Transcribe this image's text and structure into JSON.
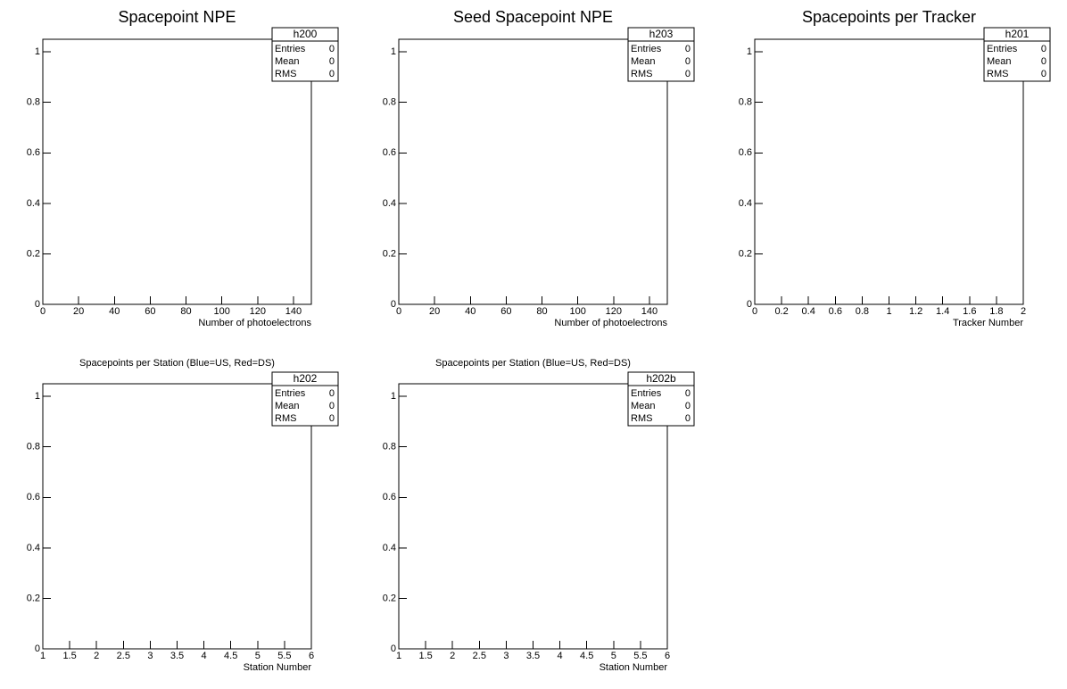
{
  "chart_data": [
    {
      "type": "hist",
      "title": "Spacepoint NPE",
      "xlabel": "Number of photoelectrons",
      "xlim": [
        0,
        150
      ],
      "xticks": [
        0,
        20,
        40,
        60,
        80,
        100,
        120,
        140
      ],
      "ylim": [
        0,
        1.05
      ],
      "yticks": [
        0,
        0.2,
        0.4,
        0.6,
        0.8,
        1
      ],
      "stats": {
        "name": "h200",
        "labels": [
          "Entries",
          "Mean",
          "RMS"
        ],
        "values": [
          0,
          0,
          0
        ]
      }
    },
    {
      "type": "hist",
      "title": "Seed Spacepoint NPE",
      "xlabel": "Number of photoelectrons",
      "xlim": [
        0,
        150
      ],
      "xticks": [
        0,
        20,
        40,
        60,
        80,
        100,
        120,
        140
      ],
      "ylim": [
        0,
        1.05
      ],
      "yticks": [
        0,
        0.2,
        0.4,
        0.6,
        0.8,
        1
      ],
      "stats": {
        "name": "h203",
        "labels": [
          "Entries",
          "Mean",
          "RMS"
        ],
        "values": [
          0,
          0,
          0
        ]
      }
    },
    {
      "type": "hist",
      "title": "Spacepoints per Tracker",
      "xlabel": "Tracker Number",
      "xlim": [
        0,
        2
      ],
      "xticks": [
        0,
        0.2,
        0.4,
        0.6,
        0.8,
        1,
        1.2,
        1.4,
        1.6,
        1.8,
        2
      ],
      "ylim": [
        0,
        1.05
      ],
      "yticks": [
        0,
        0.2,
        0.4,
        0.6,
        0.8,
        1
      ],
      "stats": {
        "name": "h201",
        "labels": [
          "Entries",
          "Mean",
          "RMS"
        ],
        "values": [
          0,
          0,
          0
        ]
      }
    },
    {
      "type": "hist",
      "title": "Spacepoints per Station (Blue=US, Red=DS)",
      "xlabel": "Station Number",
      "xlim": [
        1,
        6
      ],
      "xticks": [
        1,
        1.5,
        2,
        2.5,
        3,
        3.5,
        4,
        4.5,
        5,
        5.5,
        6
      ],
      "ylim": [
        0,
        1.05
      ],
      "yticks": [
        0,
        0.2,
        0.4,
        0.6,
        0.8,
        1
      ],
      "stats": {
        "name": "h202",
        "labels": [
          "Entries",
          "Mean",
          "RMS"
        ],
        "values": [
          0,
          0,
          0
        ]
      }
    },
    {
      "type": "hist",
      "title": "Spacepoints per Station (Blue=US, Red=DS)",
      "xlabel": "Station Number",
      "xlim": [
        1,
        6
      ],
      "xticks": [
        1,
        1.5,
        2,
        2.5,
        3,
        3.5,
        4,
        4.5,
        5,
        5.5,
        6
      ],
      "ylim": [
        0,
        1.05
      ],
      "yticks": [
        0,
        0.2,
        0.4,
        0.6,
        0.8,
        1
      ],
      "stats": {
        "name": "h202b",
        "labels": [
          "Entries",
          "Mean",
          "RMS"
        ],
        "values": [
          0,
          0,
          0
        ]
      }
    }
  ]
}
